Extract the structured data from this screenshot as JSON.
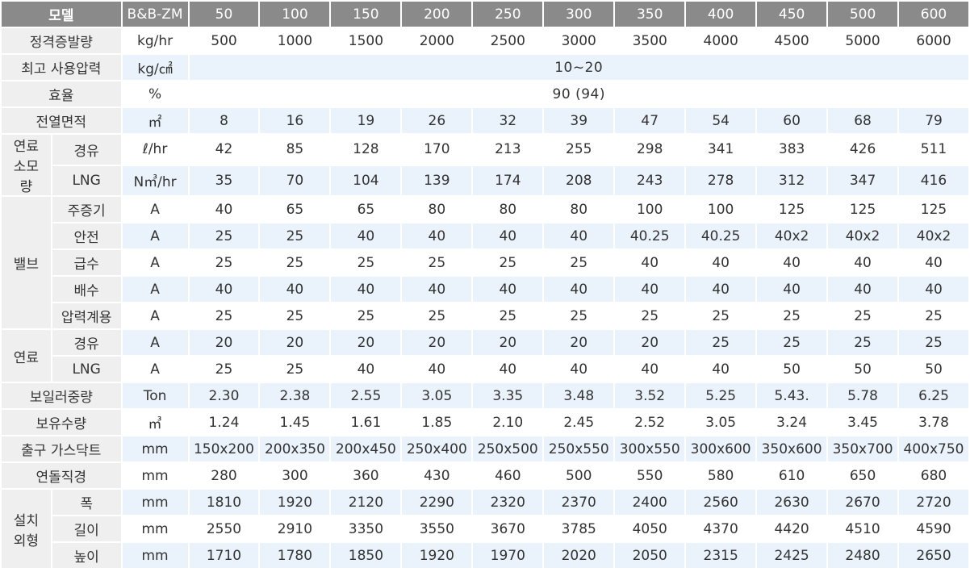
{
  "header": {
    "model_label": "모델",
    "series_label": "B&B-ZM",
    "models": [
      "50",
      "100",
      "150",
      "200",
      "250",
      "300",
      "350",
      "400",
      "450",
      "500",
      "600"
    ]
  },
  "rows": [
    {
      "group": "",
      "label": "정격증발량",
      "unit": "kg/hr",
      "values": [
        "500",
        "1000",
        "1500",
        "2000",
        "2500",
        "3000",
        "3500",
        "4000",
        "4500",
        "5000",
        "6000"
      ]
    },
    {
      "group": "",
      "label": "최고 사용압력",
      "unit": "kg/㎠",
      "merged": "10~20"
    },
    {
      "group": "",
      "label": "효율",
      "unit": "%",
      "merged": "90 (94)"
    },
    {
      "group": "",
      "label": "전열면적",
      "unit": "㎡",
      "values": [
        "8",
        "16",
        "19",
        "26",
        "32",
        "39",
        "47",
        "54",
        "60",
        "68",
        "79"
      ]
    },
    {
      "group": "연료소모량",
      "label": "경유",
      "unit": "ℓ/hr",
      "values": [
        "42",
        "85",
        "128",
        "170",
        "213",
        "255",
        "298",
        "341",
        "383",
        "426",
        "511"
      ]
    },
    {
      "group": "연료소모량",
      "label": "LNG",
      "unit": "N㎥/hr",
      "values": [
        "35",
        "70",
        "104",
        "139",
        "174",
        "208",
        "243",
        "278",
        "312",
        "347",
        "416"
      ]
    },
    {
      "group": "밸브",
      "label": "주증기",
      "unit": "A",
      "values": [
        "40",
        "65",
        "65",
        "80",
        "80",
        "80",
        "100",
        "100",
        "125",
        "125",
        "125"
      ]
    },
    {
      "group": "밸브",
      "label": "안전",
      "unit": "A",
      "values": [
        "25",
        "25",
        "40",
        "40",
        "40",
        "40",
        "40.25",
        "40.25",
        "40x2",
        "40x2",
        "40x2"
      ]
    },
    {
      "group": "밸브",
      "label": "급수",
      "unit": "A",
      "values": [
        "25",
        "25",
        "25",
        "25",
        "25",
        "25",
        "40",
        "40",
        "40",
        "40",
        "40"
      ]
    },
    {
      "group": "밸브",
      "label": "배수",
      "unit": "A",
      "values": [
        "40",
        "40",
        "40",
        "40",
        "40",
        "40",
        "40",
        "40",
        "40",
        "40",
        "40"
      ]
    },
    {
      "group": "밸브",
      "label": "압력계용",
      "unit": "A",
      "values": [
        "25",
        "25",
        "25",
        "25",
        "25",
        "25",
        "25",
        "25",
        "25",
        "25",
        "25"
      ]
    },
    {
      "group": "연료",
      "label": "경유",
      "unit": "A",
      "values": [
        "20",
        "20",
        "20",
        "20",
        "20",
        "20",
        "20",
        "25",
        "25",
        "25",
        "25"
      ]
    },
    {
      "group": "연료",
      "label": "LNG",
      "unit": "A",
      "values": [
        "25",
        "25",
        "40",
        "40",
        "40",
        "40",
        "40",
        "40",
        "50",
        "50",
        "50"
      ]
    },
    {
      "group": "",
      "label": "보일러중량",
      "unit": "Ton",
      "values": [
        "2.30",
        "2.38",
        "2.55",
        "3.05",
        "3.35",
        "3.48",
        "3.52",
        "5.25",
        "5.43.",
        "5.78",
        "6.25"
      ]
    },
    {
      "group": "",
      "label": "보유수량",
      "unit": "㎥",
      "values": [
        "1.24",
        "1.45",
        "1.61",
        "1.85",
        "2.10",
        "2.45",
        "2.52",
        "3.05",
        "3.24",
        "3.45",
        "3.78"
      ]
    },
    {
      "group": "",
      "label": "출구 가스닥트",
      "unit": "mm",
      "values": [
        "150x200",
        "200x350",
        "200x450",
        "250x400",
        "250x500",
        "250x550",
        "300x550",
        "300x600",
        "350x600",
        "350x700",
        "400x750"
      ]
    },
    {
      "group": "",
      "label": "연돌직경",
      "unit": "mm",
      "values": [
        "280",
        "300",
        "360",
        "430",
        "460",
        "500",
        "550",
        "580",
        "610",
        "650",
        "680"
      ]
    },
    {
      "group": "설치외형",
      "label": "폭",
      "unit": "mm",
      "values": [
        "1810",
        "1920",
        "2120",
        "2290",
        "2320",
        "2370",
        "2400",
        "2560",
        "2630",
        "2670",
        "2720"
      ]
    },
    {
      "group": "설치외형",
      "label": "길이",
      "unit": "mm",
      "values": [
        "2550",
        "2910",
        "3350",
        "3550",
        "3670",
        "3785",
        "4050",
        "4370",
        "4420",
        "4510",
        "4590"
      ]
    },
    {
      "group": "설치외형",
      "label": "높이",
      "unit": "mm",
      "values": [
        "1710",
        "1780",
        "1850",
        "1920",
        "1970",
        "2020",
        "2050",
        "2315",
        "2425",
        "2480",
        "2650"
      ]
    }
  ],
  "groups": {
    "연료소모량": [
      "연료",
      "소모",
      "량"
    ],
    "밸브": [
      "밸브"
    ],
    "연료": [
      "연료"
    ],
    "설치외형": [
      "설치",
      "외형"
    ]
  }
}
